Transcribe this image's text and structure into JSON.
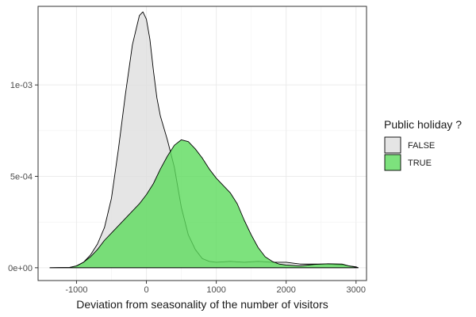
{
  "chart_data": {
    "type": "area",
    "xlabel": "Deviation from seasonality of the number of visitors",
    "ylabel": "",
    "xlim": [
      -1550,
      3150
    ],
    "ylim": [
      -7e-05,
      0.00143
    ],
    "x_ticks": [
      -1000,
      0,
      1000,
      2000,
      3000
    ],
    "x_tick_labels": [
      "-1000",
      "0",
      "1000",
      "2000",
      "3000"
    ],
    "y_ticks": [
      0,
      0.0005,
      0.001
    ],
    "y_tick_labels": [
      "0e+00",
      "5e-04",
      "1e-03"
    ],
    "grid": true,
    "legend": {
      "title": "Public holiday ?",
      "placement": "right"
    },
    "series": [
      {
        "name": "FALSE",
        "color": "#dedede",
        "points": [
          [
            -1380,
            0
          ],
          [
            -1100,
            1e-06
          ],
          [
            -1000,
            1e-05
          ],
          [
            -900,
            3e-05
          ],
          [
            -800,
            7e-05
          ],
          [
            -700,
            0.00013
          ],
          [
            -600,
            0.00022
          ],
          [
            -500,
            0.00038
          ],
          [
            -400,
            0.00065
          ],
          [
            -300,
            0.00095
          ],
          [
            -200,
            0.00122
          ],
          [
            -100,
            0.00138
          ],
          [
            -50,
            0.0014
          ],
          [
            0,
            0.00136
          ],
          [
            50,
            0.00125
          ],
          [
            100,
            0.00108
          ],
          [
            150,
            0.00093
          ],
          [
            200,
            0.00083
          ],
          [
            300,
            0.0007
          ],
          [
            400,
            0.00055
          ],
          [
            500,
            0.00033
          ],
          [
            600,
            0.00018
          ],
          [
            700,
            0.0001
          ],
          [
            800,
            5e-05
          ],
          [
            900,
            3.5e-05
          ],
          [
            1000,
            3e-05
          ],
          [
            1200,
            3.5e-05
          ],
          [
            1400,
            3e-05
          ],
          [
            1600,
            3.5e-05
          ],
          [
            1800,
            3e-05
          ],
          [
            2000,
            3e-05
          ],
          [
            2200,
            2e-05
          ],
          [
            2400,
            2e-05
          ],
          [
            2600,
            2e-05
          ],
          [
            2800,
            1.5e-05
          ],
          [
            3000,
            5e-06
          ],
          [
            3030,
            0
          ]
        ]
      },
      {
        "name": "TRUE",
        "color": "#5ddb5d",
        "points": [
          [
            -1380,
            0
          ],
          [
            -1100,
            2e-06
          ],
          [
            -1000,
            1e-05
          ],
          [
            -900,
            3e-05
          ],
          [
            -800,
            6e-05
          ],
          [
            -700,
            0.0001
          ],
          [
            -600,
            0.00015
          ],
          [
            -500,
            0.00019
          ],
          [
            -400,
            0.00023
          ],
          [
            -300,
            0.00027
          ],
          [
            -200,
            0.00031
          ],
          [
            -100,
            0.00035
          ],
          [
            0,
            0.0004
          ],
          [
            100,
            0.00046
          ],
          [
            200,
            0.00054
          ],
          [
            300,
            0.00061
          ],
          [
            400,
            0.00067
          ],
          [
            500,
            0.0007
          ],
          [
            600,
            0.00069
          ],
          [
            700,
            0.00065
          ],
          [
            800,
            0.0006
          ],
          [
            900,
            0.00054
          ],
          [
            1000,
            0.00049
          ],
          [
            1100,
            0.00045
          ],
          [
            1200,
            0.00041
          ],
          [
            1300,
            0.00035
          ],
          [
            1400,
            0.00026
          ],
          [
            1500,
            0.00018
          ],
          [
            1600,
            0.00011
          ],
          [
            1700,
            6e-05
          ],
          [
            1800,
            3.5e-05
          ],
          [
            1900,
            2e-05
          ],
          [
            2000,
            1.5e-05
          ],
          [
            2200,
            1e-05
          ],
          [
            2400,
            1.8e-05
          ],
          [
            2600,
            2.2e-05
          ],
          [
            2800,
            2e-05
          ],
          [
            2900,
            1e-05
          ],
          [
            3000,
            3e-06
          ],
          [
            3030,
            0
          ]
        ]
      }
    ]
  }
}
